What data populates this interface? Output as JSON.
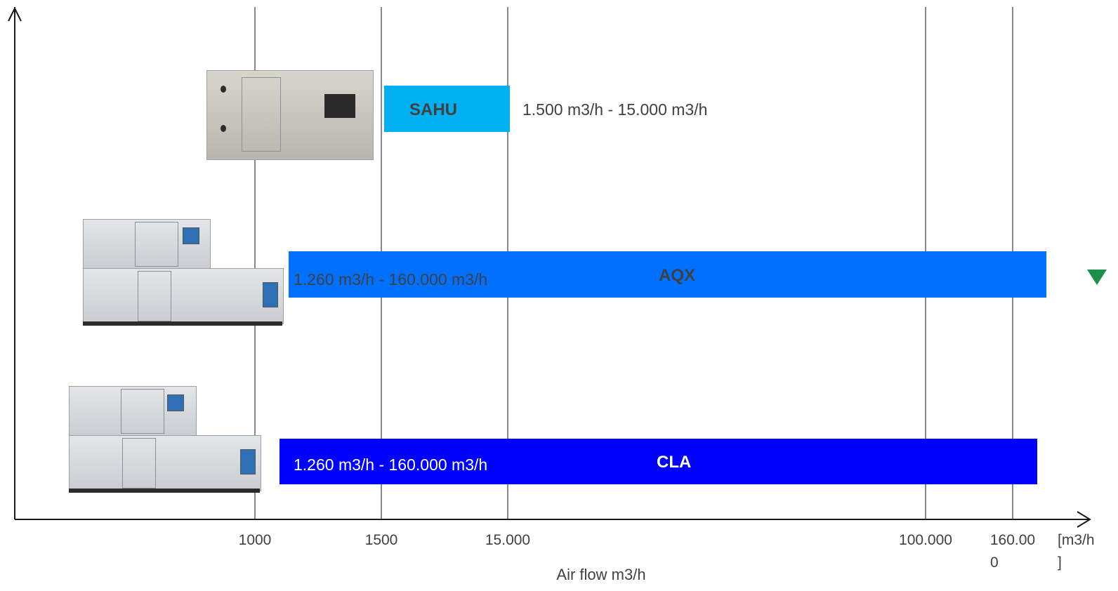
{
  "chart_data": {
    "type": "bar",
    "orientation": "horizontal-range",
    "xlabel": "Air flow m3/h",
    "x_unit": "[m3/h]",
    "x_ticks": [
      "1000",
      "1500",
      "15.000",
      "100.000",
      "160.00 0"
    ],
    "series": [
      {
        "name": "SAHU",
        "start": 1500,
        "end": 15000,
        "range_label": "1.500 m3/h  - 15.000 m3/h",
        "color": "#00b0f0",
        "text_color": "#404040"
      },
      {
        "name": "AQX",
        "start": 1260,
        "end": 160000,
        "range_label": "1.260 m3/h  - 160.000 m3/h",
        "color": "#0070ff",
        "text_color": "#404040"
      },
      {
        "name": "CLA",
        "start": 1260,
        "end": 160000,
        "range_label": "1.260 m3/h  - 160.000 m3/h",
        "color": "#0000ff",
        "text_color": "#ffffff"
      }
    ],
    "grid": "vertical"
  },
  "colors": {
    "axis": "#1a1a1a",
    "grid": "#4a4a4a",
    "tick_text": "#404040"
  },
  "images": [
    "sahu-unit",
    "aqx-unit",
    "cla-unit",
    "logo"
  ]
}
